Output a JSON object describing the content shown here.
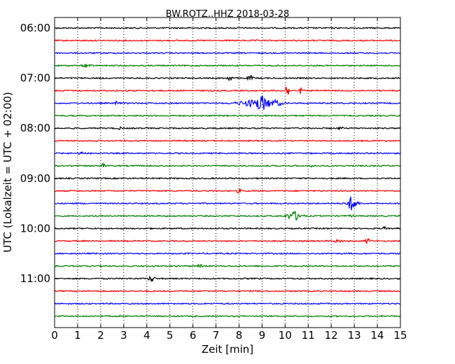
{
  "chart_data": {
    "type": "line",
    "title": "BW.ROTZ..HHZ 2018-03-28",
    "xlabel": "Zeit  [min]",
    "ylabel": "UTC (Lokalzeit = UTC + 02:00)",
    "xlim": [
      0,
      15
    ],
    "x_ticks": [
      0,
      1,
      2,
      3,
      4,
      5,
      6,
      7,
      8,
      9,
      10,
      11,
      12,
      13,
      14,
      15
    ],
    "x_tick_labels": [
      "0",
      "1",
      "2",
      "3",
      "4",
      "5",
      "6",
      "7",
      "8",
      "9",
      "10",
      "11",
      "12",
      "13",
      "14",
      "15"
    ],
    "y_tick_labels": [
      "06:00",
      "07:00",
      "08:00",
      "09:00",
      "10:00",
      "11:00"
    ],
    "grid": "vertical-dotted",
    "colors": [
      "#000000",
      "#ff0000",
      "#0000ff",
      "#007f00"
    ],
    "traces": [
      {
        "start": "06:00",
        "color": "#000000",
        "events": []
      },
      {
        "start": "06:15",
        "color": "#ff0000",
        "events": []
      },
      {
        "start": "06:30",
        "color": "#0000ff",
        "events": []
      },
      {
        "start": "06:45",
        "color": "#007f00",
        "events": [
          {
            "minute": 1.4,
            "amplitude": 0.25,
            "duration": 0.15
          }
        ]
      },
      {
        "start": "07:00",
        "color": "#000000",
        "events": [
          {
            "minute": 7.6,
            "amplitude": 0.35,
            "duration": 0.12
          },
          {
            "minute": 8.5,
            "amplitude": 0.3,
            "duration": 0.12
          }
        ]
      },
      {
        "start": "07:15",
        "color": "#ff0000",
        "events": [
          {
            "minute": 10.1,
            "amplitude": 0.7,
            "duration": 0.1
          },
          {
            "minute": 10.7,
            "amplitude": 0.6,
            "duration": 0.06
          }
        ]
      },
      {
        "start": "07:30",
        "color": "#0000ff",
        "events": [
          {
            "minute": 2.7,
            "amplitude": 0.35,
            "duration": 0.06
          },
          {
            "minute": 8.4,
            "amplitude": 0.35,
            "duration": 0.5
          },
          {
            "minute": 9.0,
            "amplitude": 1.0,
            "duration": 0.3
          },
          {
            "minute": 9.6,
            "amplitude": 0.4,
            "duration": 0.25
          }
        ]
      },
      {
        "start": "07:45",
        "color": "#007f00",
        "events": []
      },
      {
        "start": "08:00",
        "color": "#000000",
        "events": [
          {
            "minute": 2.8,
            "amplitude": 0.15,
            "duration": 0.1
          },
          {
            "minute": 12.4,
            "amplitude": 0.15,
            "duration": 0.1
          }
        ]
      },
      {
        "start": "08:15",
        "color": "#ff0000",
        "events": []
      },
      {
        "start": "08:30",
        "color": "#0000ff",
        "events": [
          {
            "minute": 1.2,
            "amplitude": 0.15,
            "duration": 0.15
          }
        ]
      },
      {
        "start": "08:45",
        "color": "#007f00",
        "events": [
          {
            "minute": 2.1,
            "amplitude": 0.3,
            "duration": 0.08
          },
          {
            "minute": 11.2,
            "amplitude": 0.15,
            "duration": 0.1
          }
        ]
      },
      {
        "start": "09:00",
        "color": "#000000",
        "events": []
      },
      {
        "start": "09:15",
        "color": "#ff0000",
        "events": [
          {
            "minute": 8.0,
            "amplitude": 0.3,
            "duration": 0.08
          }
        ]
      },
      {
        "start": "09:30",
        "color": "#0000ff",
        "events": [
          {
            "minute": 12.9,
            "amplitude": 1.0,
            "duration": 0.2
          }
        ]
      },
      {
        "start": "09:45",
        "color": "#007f00",
        "events": [
          {
            "minute": 10.4,
            "amplitude": 0.6,
            "duration": 0.3
          },
          {
            "minute": 12.9,
            "amplitude": 0.2,
            "duration": 0.08
          }
        ]
      },
      {
        "start": "10:00",
        "color": "#000000",
        "events": [
          {
            "minute": 14.3,
            "amplitude": 0.2,
            "duration": 0.08
          }
        ]
      },
      {
        "start": "10:15",
        "color": "#ff0000",
        "events": [
          {
            "minute": 12.3,
            "amplitude": 0.2,
            "duration": 0.15
          },
          {
            "minute": 13.6,
            "amplitude": 0.3,
            "duration": 0.12
          }
        ]
      },
      {
        "start": "10:30",
        "color": "#0000ff",
        "events": []
      },
      {
        "start": "10:45",
        "color": "#007f00",
        "events": [
          {
            "minute": 6.3,
            "amplitude": 0.2,
            "duration": 0.1
          }
        ]
      },
      {
        "start": "11:00",
        "color": "#000000",
        "events": [
          {
            "minute": 4.2,
            "amplitude": 0.4,
            "duration": 0.12
          }
        ]
      },
      {
        "start": "11:15",
        "color": "#ff0000",
        "events": []
      },
      {
        "start": "11:30",
        "color": "#0000ff",
        "events": []
      },
      {
        "start": "11:45",
        "color": "#007f00",
        "events": []
      }
    ]
  }
}
